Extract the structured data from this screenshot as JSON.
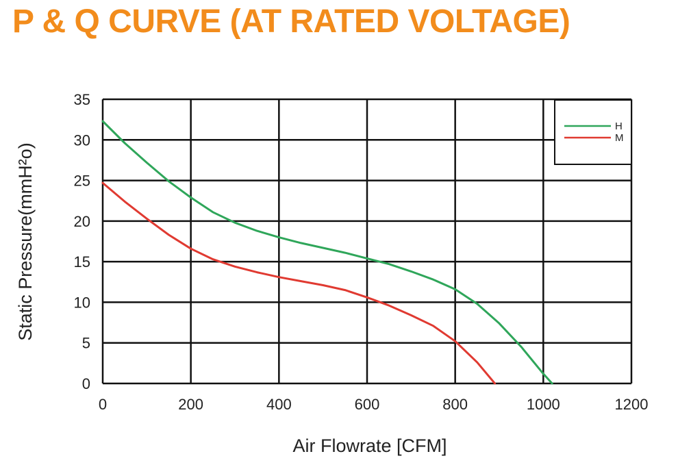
{
  "chart_data": {
    "type": "line",
    "title": "P & Q CURVE (AT RATED VOLTAGE)",
    "xlabel": "Air  Flowrate   [CFM]",
    "ylabel": "Static Pressure(mmH²o)",
    "xlim": [
      0,
      1200
    ],
    "ylim": [
      0,
      35
    ],
    "xticks": [
      "0",
      "200",
      "400",
      "600",
      "800",
      "1000",
      "1200"
    ],
    "yticks": [
      "0",
      "5",
      "10",
      "15",
      "20",
      "25",
      "30",
      "35"
    ],
    "grid": true,
    "legend_position": "top-right",
    "series": [
      {
        "name": "H",
        "color": "#2fa65a",
        "x": [
          0,
          50,
          100,
          150,
          200,
          250,
          300,
          350,
          400,
          450,
          500,
          550,
          600,
          650,
          700,
          750,
          800,
          850,
          900,
          950,
          1000,
          1020
        ],
        "y": [
          32.3,
          29.6,
          27.2,
          24.9,
          22.9,
          21.1,
          19.8,
          18.8,
          18.0,
          17.3,
          16.7,
          16.1,
          15.4,
          14.7,
          13.8,
          12.8,
          11.6,
          9.8,
          7.4,
          4.5,
          1.2,
          0
        ]
      },
      {
        "name": "M",
        "color": "#e03a31",
        "x": [
          0,
          50,
          100,
          150,
          200,
          250,
          300,
          350,
          400,
          450,
          500,
          550,
          600,
          650,
          700,
          750,
          800,
          850,
          890
        ],
        "y": [
          24.7,
          22.4,
          20.3,
          18.3,
          16.6,
          15.3,
          14.4,
          13.7,
          13.1,
          12.6,
          12.1,
          11.5,
          10.6,
          9.6,
          8.4,
          7.1,
          5.2,
          2.6,
          0
        ]
      }
    ]
  }
}
